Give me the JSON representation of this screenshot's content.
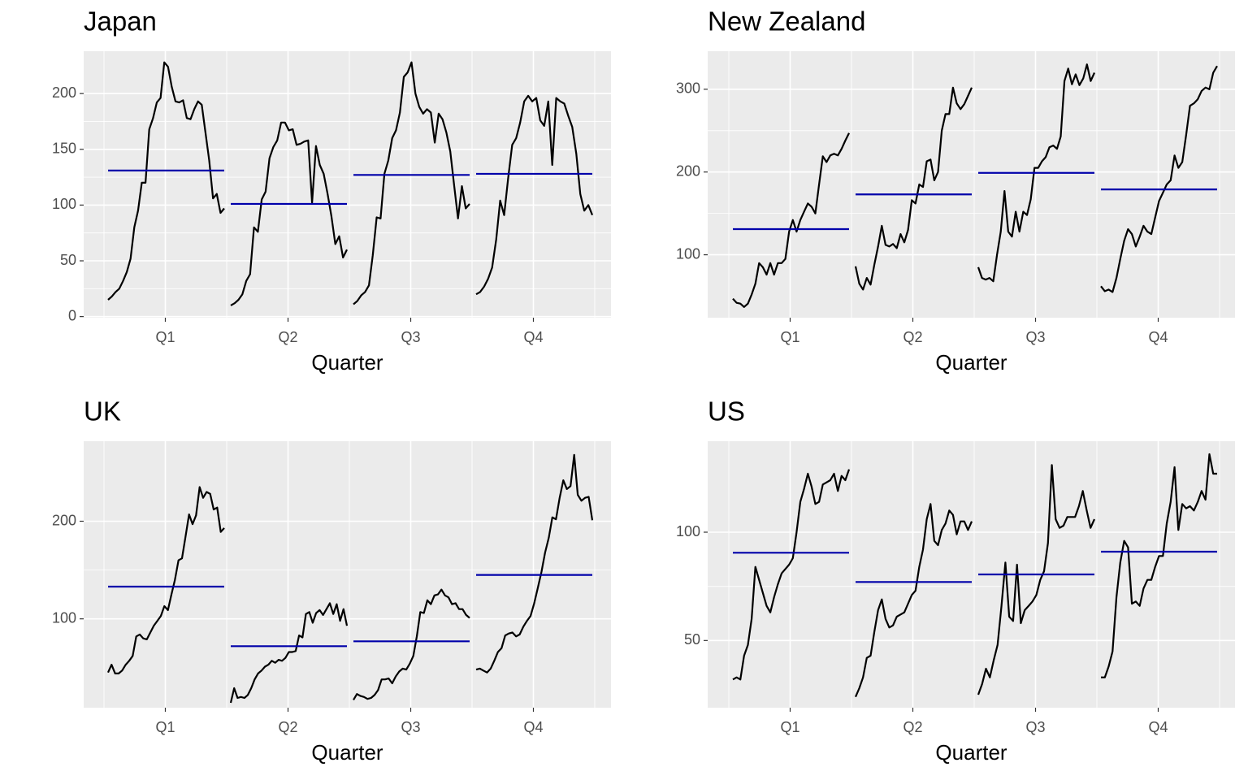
{
  "chart_data": [
    {
      "type": "subseries",
      "title": "Japan",
      "xlabel": "Quarter",
      "categories": [
        "Q1",
        "Q2",
        "Q3",
        "Q4"
      ],
      "color": "#000000",
      "mean_color": "#0000aa",
      "grid": true,
      "ylim": [
        -1,
        238
      ],
      "yticks": [
        0,
        50,
        100,
        150,
        200
      ],
      "values": [
        [
          15,
          18,
          22,
          25,
          32,
          40,
          52,
          80,
          95,
          120,
          120,
          168,
          178,
          192,
          196,
          228,
          224,
          206,
          193,
          192,
          194,
          178,
          177,
          186,
          193,
          190,
          165,
          140,
          106,
          110,
          93,
          97
        ],
        [
          10,
          12,
          15,
          20,
          32,
          38,
          80,
          76,
          105,
          112,
          142,
          152,
          158,
          174,
          174,
          167,
          168,
          154,
          155,
          157,
          158,
          102,
          153,
          136,
          128,
          110,
          90,
          65,
          72,
          53,
          60
        ],
        [
          11,
          14,
          19,
          22,
          28,
          55,
          89,
          88,
          128,
          140,
          160,
          167,
          183,
          215,
          219,
          228,
          200,
          188,
          182,
          186,
          183,
          156,
          182,
          177,
          165,
          148,
          118,
          88,
          117,
          97,
          101
        ],
        [
          20,
          22,
          27,
          34,
          44,
          69,
          104,
          91,
          124,
          154,
          160,
          174,
          193,
          198,
          193,
          196,
          176,
          171,
          193,
          136,
          196,
          193,
          191,
          180,
          170,
          146,
          110,
          95,
          100,
          91
        ]
      ],
      "means": [
        131,
        101,
        127,
        128
      ]
    },
    {
      "type": "subseries",
      "title": "New Zealand",
      "xlabel": "Quarter",
      "categories": [
        "Q1",
        "Q2",
        "Q3",
        "Q4"
      ],
      "color": "#000000",
      "mean_color": "#0000aa",
      "grid": true,
      "ylim": [
        24,
        346
      ],
      "yticks": [
        100,
        200,
        300
      ],
      "values": [
        [
          47,
          42,
          41,
          37,
          41,
          52,
          65,
          90,
          85,
          76,
          90,
          76,
          90,
          90,
          95,
          128,
          142,
          128,
          142,
          152,
          162,
          158,
          150,
          185,
          219,
          212,
          220,
          222,
          220,
          228,
          238,
          247
        ],
        [
          86,
          65,
          58,
          72,
          64,
          88,
          110,
          135,
          112,
          110,
          113,
          108,
          125,
          115,
          130,
          166,
          162,
          185,
          182,
          213,
          215,
          190,
          200,
          250,
          270,
          270,
          302,
          283,
          276,
          282,
          292,
          302
        ],
        [
          85,
          72,
          70,
          72,
          68,
          100,
          128,
          177,
          128,
          122,
          152,
          128,
          152,
          148,
          167,
          205,
          205,
          213,
          218,
          230,
          232,
          228,
          243,
          310,
          325,
          306,
          318,
          305,
          313,
          330,
          310,
          320
        ],
        [
          62,
          56,
          58,
          55,
          72,
          95,
          117,
          131,
          125,
          110,
          122,
          135,
          128,
          125,
          145,
          165,
          175,
          185,
          190,
          220,
          205,
          212,
          245,
          280,
          283,
          288,
          298,
          302,
          300,
          320,
          328
        ]
      ],
      "means": [
        131,
        173,
        199,
        179
      ]
    },
    {
      "type": "subseries",
      "title": "UK",
      "xlabel": "Quarter",
      "categories": [
        "Q1",
        "Q2",
        "Q3",
        "Q4"
      ],
      "color": "#000000",
      "mean_color": "#0000aa",
      "grid": true,
      "ylim": [
        9,
        282
      ],
      "yticks": [
        100,
        200
      ],
      "values": [
        [
          45,
          53,
          44,
          44,
          47,
          53,
          57,
          62,
          82,
          84,
          80,
          79,
          86,
          93,
          98,
          103,
          113,
          109,
          125,
          140,
          160,
          162,
          184,
          207,
          197,
          206,
          235,
          224,
          230,
          228,
          212,
          214,
          189,
          193
        ],
        [
          14,
          29,
          19,
          20,
          19,
          22,
          29,
          38,
          44,
          47,
          51,
          53,
          57,
          55,
          58,
          57,
          60,
          66,
          66,
          67,
          83,
          81,
          105,
          107,
          96,
          106,
          109,
          104,
          110,
          116,
          105,
          115,
          98,
          110,
          93
        ],
        [
          17,
          23,
          21,
          20,
          18,
          19,
          22,
          27,
          38,
          38,
          39,
          34,
          41,
          46,
          49,
          48,
          54,
          62,
          82,
          107,
          106,
          119,
          115,
          124,
          125,
          130,
          124,
          122,
          115,
          116,
          110,
          110,
          104,
          101
        ],
        [
          48,
          49,
          47,
          45,
          49,
          57,
          66,
          70,
          83,
          85,
          86,
          82,
          84,
          92,
          98,
          103,
          116,
          132,
          148,
          168,
          183,
          204,
          202,
          224,
          242,
          233,
          236,
          268,
          227,
          221,
          224,
          225,
          201
        ]
      ],
      "means": [
        133,
        72,
        77,
        145
      ]
    },
    {
      "type": "subseries",
      "title": "US",
      "xlabel": "Quarter",
      "categories": [
        "Q1",
        "Q2",
        "Q3",
        "Q4"
      ],
      "color": "#000000",
      "mean_color": "#0000aa",
      "grid": true,
      "ylim": [
        19,
        142
      ],
      "yticks": [
        50,
        100
      ],
      "values": [
        [
          32,
          33,
          32,
          43,
          48,
          60,
          84,
          78,
          72,
          66,
          63,
          70,
          76,
          81,
          83,
          85,
          88,
          100,
          114,
          120,
          127,
          121,
          113,
          114,
          122,
          123,
          124,
          127,
          119,
          126,
          124,
          129
        ],
        [
          24,
          28,
          33,
          42,
          43,
          54,
          64,
          69,
          60,
          56,
          57,
          61,
          62,
          63,
          67,
          71,
          73,
          84,
          92,
          106,
          113,
          96,
          94,
          101,
          104,
          110,
          108,
          99,
          105,
          105,
          101,
          105
        ],
        [
          25,
          30,
          37,
          33,
          41,
          48,
          66,
          86,
          61,
          59,
          85,
          58,
          64,
          66,
          68,
          71,
          78,
          82,
          95,
          131,
          106,
          102,
          103,
          107,
          107,
          107,
          112,
          119,
          110,
          102,
          106
        ],
        [
          33,
          33,
          38,
          45,
          70,
          86,
          96,
          93,
          67,
          68,
          66,
          74,
          78,
          78,
          84,
          89,
          89,
          104,
          114,
          130,
          101,
          113,
          111,
          112,
          110,
          114,
          119,
          115,
          136,
          127,
          127
        ]
      ],
      "means": [
        90.5,
        77,
        80.5,
        91
      ]
    }
  ]
}
